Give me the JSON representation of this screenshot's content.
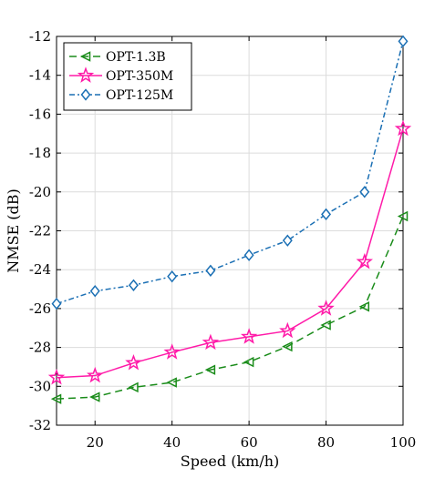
{
  "chart_data": {
    "type": "line",
    "xlabel": "Speed (km/h)",
    "ylabel": "NMSE (dB)",
    "xlim": [
      10,
      100
    ],
    "ylim": [
      -32,
      -12
    ],
    "xticks": [
      20,
      40,
      60,
      80,
      100
    ],
    "yticks": [
      -32,
      -30,
      -28,
      -26,
      -24,
      -22,
      -20,
      -18,
      -16,
      -14,
      -12
    ],
    "grid": true,
    "legend_position": "top-left",
    "x": [
      10,
      20,
      30,
      40,
      50,
      60,
      70,
      80,
      90,
      100
    ],
    "series": [
      {
        "name": "OPT-1.3B",
        "color": "#1a8c1a",
        "line_style": "dashed",
        "marker": "triangle-left",
        "values": [
          -30.65,
          -30.55,
          -30.05,
          -29.8,
          -29.15,
          -28.75,
          -27.95,
          -26.85,
          -25.9,
          -21.25
        ]
      },
      {
        "name": "OPT-350M",
        "color": "#ff1aa8",
        "line_style": "solid",
        "marker": "pentagram",
        "values": [
          -29.55,
          -29.45,
          -28.8,
          -28.25,
          -27.75,
          -27.45,
          -27.15,
          -26.0,
          -23.6,
          -16.75
        ]
      },
      {
        "name": "OPT-125M",
        "color": "#1a6fb4",
        "line_style": "dash-dot",
        "marker": "diamond",
        "values": [
          -25.75,
          -25.1,
          -24.8,
          -24.35,
          -24.05,
          -23.25,
          -22.5,
          -21.15,
          -20.0,
          -12.25
        ]
      }
    ]
  }
}
